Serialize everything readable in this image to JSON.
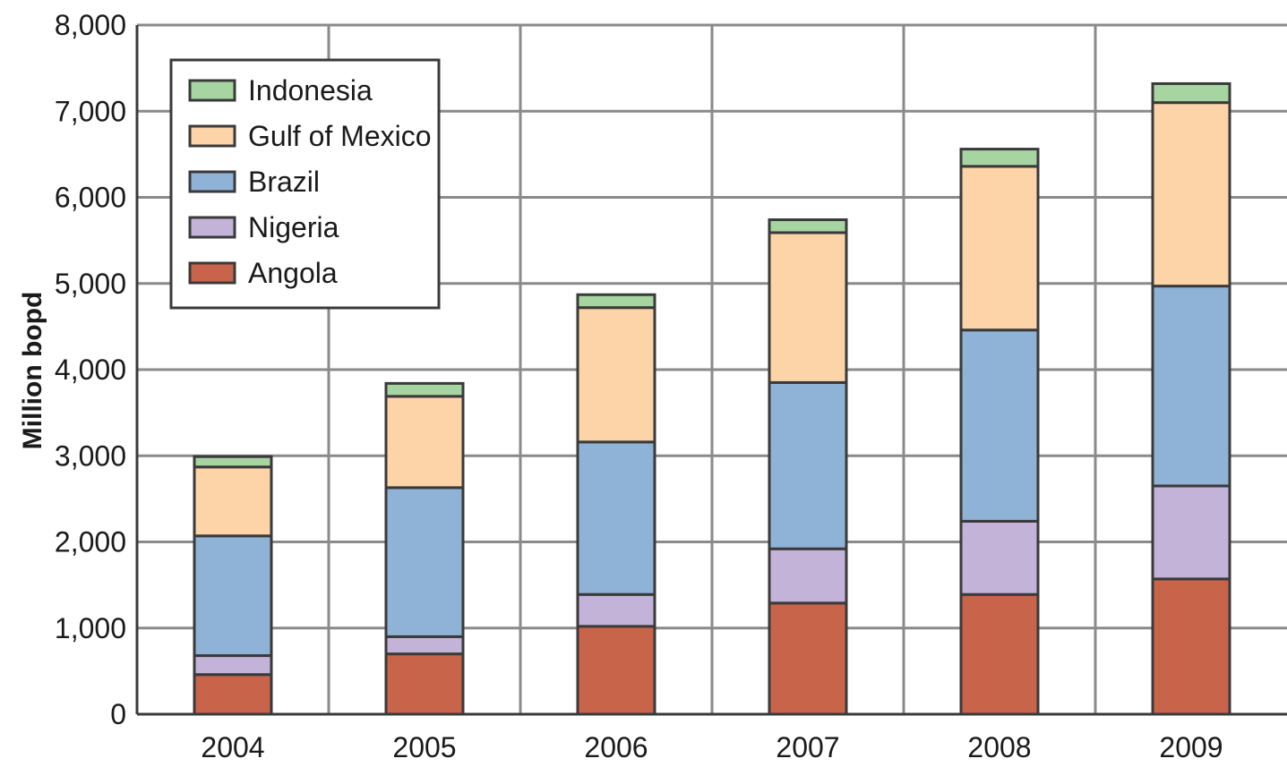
{
  "chart_data": {
    "type": "bar",
    "stacked": true,
    "categories": [
      "2004",
      "2005",
      "2006",
      "2007",
      "2008",
      "2009"
    ],
    "series": [
      {
        "name": "Angola",
        "color": "#c8644a",
        "values": [
          460,
          700,
          1020,
          1290,
          1390,
          1570
        ]
      },
      {
        "name": "Nigeria",
        "color": "#c3b3d9",
        "values": [
          220,
          200,
          370,
          630,
          850,
          1080
        ]
      },
      {
        "name": "Brazil",
        "color": "#8fb3d6",
        "values": [
          1390,
          1730,
          1770,
          1930,
          2220,
          2320
        ]
      },
      {
        "name": "Gulf of Mexico",
        "color": "#fdd3a8",
        "values": [
          800,
          1060,
          1560,
          1740,
          1900,
          2130
        ]
      },
      {
        "name": "Indonesia",
        "color": "#a6d5a1",
        "values": [
          120,
          150,
          150,
          150,
          200,
          220
        ]
      }
    ],
    "ylabel": "Million bopd",
    "xlabel": "",
    "ylim": [
      0,
      8000
    ],
    "yticks": [
      0,
      1000,
      2000,
      3000,
      4000,
      5000,
      6000,
      7000,
      8000
    ],
    "ytick_labels": [
      "0",
      "1,000",
      "2,000",
      "3,000",
      "4,000",
      "5,000",
      "6,000",
      "7,000",
      "8,000"
    ],
    "grid": true,
    "legend_position": "top-left",
    "legend_order": [
      "Indonesia",
      "Gulf of Mexico",
      "Brazil",
      "Nigeria",
      "Angola"
    ]
  }
}
